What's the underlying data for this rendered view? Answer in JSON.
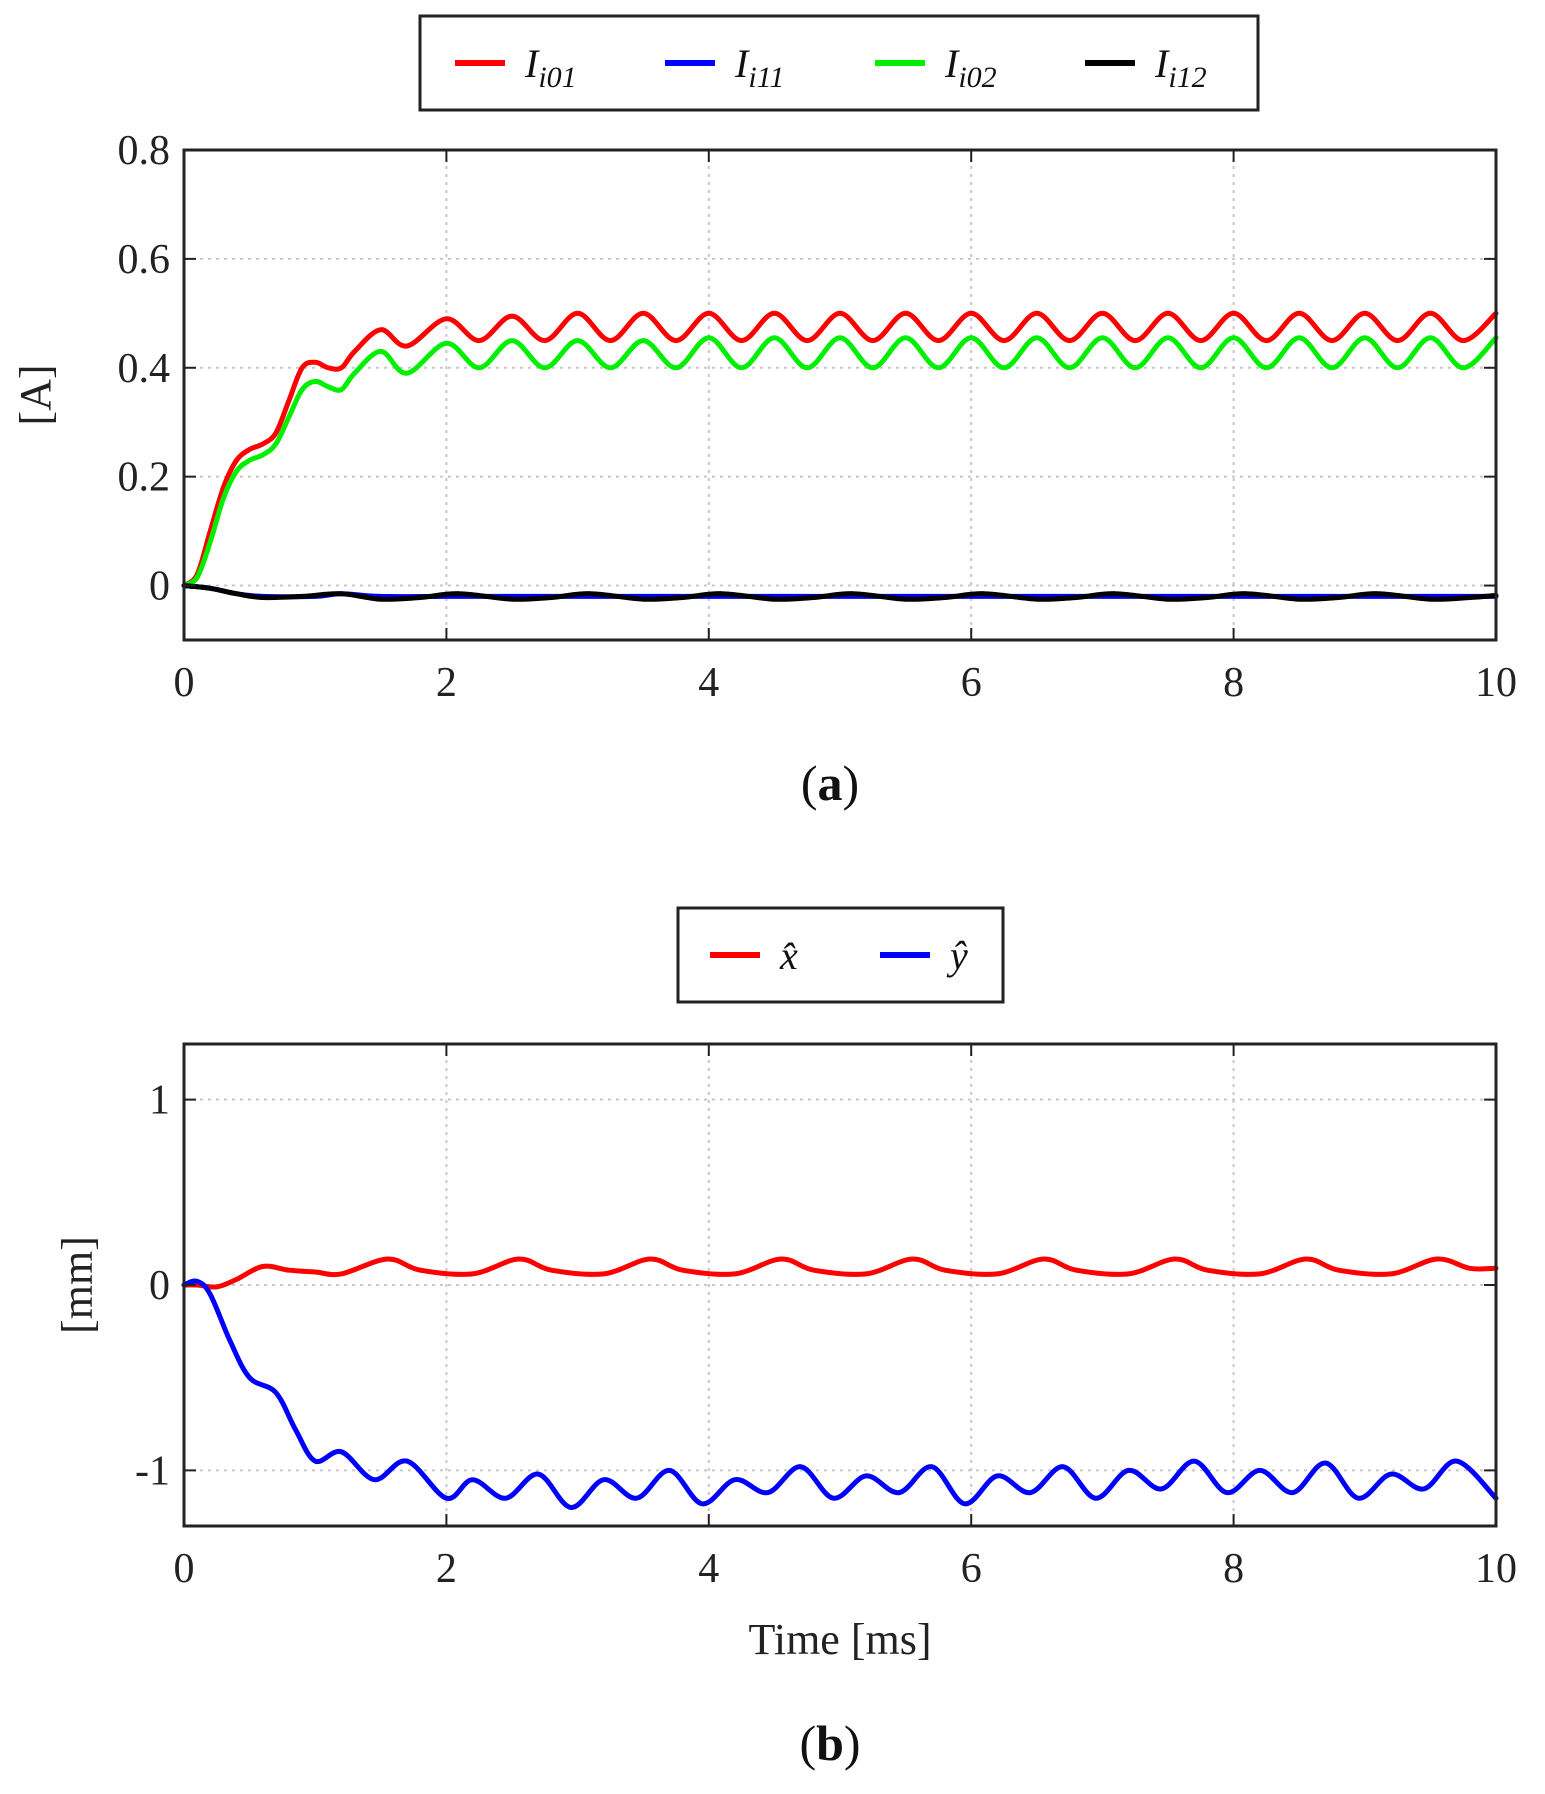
{
  "chart_data": [
    {
      "type": "line",
      "panel": "a",
      "caption_letter": "a",
      "xlabel": "",
      "ylabel": "[A]",
      "xlim": [
        0,
        10
      ],
      "ylim": [
        -0.1,
        0.8
      ],
      "xticks": [
        "0",
        "2",
        "4",
        "6",
        "8",
        "10"
      ],
      "yticks": [
        "0",
        "0.2",
        "0.4",
        "0.6",
        "0.8"
      ],
      "grid": true,
      "legend_position": "top, outside, horizontal",
      "series": [
        {
          "name": "I",
          "subscript": "i01",
          "color": "#ff0000",
          "x": [
            0,
            0.1,
            0.2,
            0.3,
            0.4,
            0.5,
            0.6,
            0.7,
            0.8,
            0.9,
            1.0,
            1.1,
            1.2,
            1.3,
            1.5,
            1.7,
            2.0,
            2.25,
            2.5,
            2.75,
            3.0,
            3.25,
            3.5,
            3.75,
            4.0,
            4.25,
            4.5,
            4.75,
            5.0,
            5.25,
            5.5,
            5.75,
            6.0,
            6.25,
            6.5,
            6.75,
            7.0,
            7.25,
            7.5,
            7.75,
            8.0,
            8.25,
            8.5,
            8.75,
            9.0,
            9.25,
            9.5,
            9.75,
            10.0
          ],
          "y": [
            0,
            0.02,
            0.1,
            0.18,
            0.23,
            0.25,
            0.26,
            0.28,
            0.34,
            0.4,
            0.41,
            0.4,
            0.4,
            0.43,
            0.47,
            0.44,
            0.49,
            0.45,
            0.495,
            0.45,
            0.5,
            0.45,
            0.5,
            0.45,
            0.5,
            0.45,
            0.5,
            0.45,
            0.5,
            0.45,
            0.5,
            0.45,
            0.5,
            0.45,
            0.5,
            0.45,
            0.5,
            0.45,
            0.5,
            0.45,
            0.5,
            0.45,
            0.5,
            0.45,
            0.5,
            0.45,
            0.5,
            0.45,
            0.5
          ]
        },
        {
          "name": "I",
          "subscript": "i11",
          "color": "#0000ff",
          "x": [
            0,
            0.2,
            0.4,
            0.6,
            1.0,
            1.2,
            1.5,
            2.0,
            2.5,
            3.0,
            3.5,
            4.0,
            4.5,
            5.0,
            5.5,
            6.0,
            6.5,
            7.0,
            7.5,
            8.0,
            8.5,
            9.0,
            9.5,
            10.0
          ],
          "y": [
            0,
            -0.005,
            -0.015,
            -0.02,
            -0.02,
            -0.015,
            -0.02,
            -0.02,
            -0.02,
            -0.02,
            -0.02,
            -0.02,
            -0.02,
            -0.02,
            -0.02,
            -0.02,
            -0.02,
            -0.02,
            -0.02,
            -0.02,
            -0.02,
            -0.02,
            -0.02,
            -0.02
          ]
        },
        {
          "name": "I",
          "subscript": "i02",
          "color": "#00ee00",
          "x": [
            0,
            0.1,
            0.2,
            0.3,
            0.4,
            0.5,
            0.6,
            0.7,
            0.8,
            0.9,
            1.0,
            1.1,
            1.2,
            1.3,
            1.5,
            1.7,
            2.0,
            2.25,
            2.5,
            2.75,
            3.0,
            3.25,
            3.5,
            3.75,
            4.0,
            4.25,
            4.5,
            4.75,
            5.0,
            5.25,
            5.5,
            5.75,
            6.0,
            6.25,
            6.5,
            6.75,
            7.0,
            7.25,
            7.5,
            7.75,
            8.0,
            8.25,
            8.5,
            8.75,
            9.0,
            9.25,
            9.5,
            9.75,
            10.0
          ],
          "y": [
            0,
            0.015,
            0.08,
            0.16,
            0.21,
            0.23,
            0.24,
            0.26,
            0.31,
            0.36,
            0.375,
            0.365,
            0.36,
            0.39,
            0.43,
            0.39,
            0.445,
            0.4,
            0.45,
            0.4,
            0.45,
            0.4,
            0.45,
            0.4,
            0.455,
            0.4,
            0.455,
            0.4,
            0.455,
            0.4,
            0.455,
            0.4,
            0.455,
            0.4,
            0.455,
            0.4,
            0.455,
            0.4,
            0.455,
            0.4,
            0.455,
            0.4,
            0.455,
            0.4,
            0.455,
            0.4,
            0.455,
            0.4,
            0.455
          ]
        },
        {
          "name": "I",
          "subscript": "i12",
          "color": "#000000",
          "x": [
            0,
            0.2,
            0.4,
            0.6,
            0.9,
            1.2,
            1.5,
            1.8,
            2.1,
            2.5,
            2.8,
            3.1,
            3.5,
            3.8,
            4.1,
            4.5,
            4.8,
            5.1,
            5.5,
            5.8,
            6.1,
            6.5,
            6.8,
            7.1,
            7.5,
            7.8,
            8.1,
            8.5,
            8.8,
            9.1,
            9.5,
            9.8,
            10.0
          ],
          "y": [
            0,
            -0.005,
            -0.015,
            -0.022,
            -0.02,
            -0.015,
            -0.025,
            -0.022,
            -0.015,
            -0.025,
            -0.022,
            -0.015,
            -0.025,
            -0.022,
            -0.015,
            -0.025,
            -0.022,
            -0.015,
            -0.025,
            -0.022,
            -0.015,
            -0.025,
            -0.022,
            -0.015,
            -0.025,
            -0.022,
            -0.015,
            -0.025,
            -0.022,
            -0.015,
            -0.025,
            -0.022,
            -0.018
          ]
        }
      ]
    },
    {
      "type": "line",
      "panel": "b",
      "caption_letter": "b",
      "xlabel": "Time [ms]",
      "ylabel": "[mm]",
      "xlim": [
        0,
        10
      ],
      "ylim": [
        -1.3,
        1.3
      ],
      "xticks": [
        "0",
        "2",
        "4",
        "6",
        "8",
        "10"
      ],
      "yticks": [
        "-1",
        "0",
        "1"
      ],
      "grid": true,
      "legend_position": "top, outside, horizontal",
      "series": [
        {
          "name": "x̂",
          "color": "#ff0000",
          "x": [
            0,
            0.1,
            0.25,
            0.4,
            0.6,
            0.8,
            1.0,
            1.2,
            1.55,
            1.8,
            2.2,
            2.55,
            2.8,
            3.2,
            3.55,
            3.8,
            4.2,
            4.55,
            4.8,
            5.2,
            5.55,
            5.8,
            6.2,
            6.55,
            6.8,
            7.2,
            7.55,
            7.8,
            8.2,
            8.55,
            8.8,
            9.2,
            9.55,
            9.8,
            10.0
          ],
          "y": [
            0,
            0,
            -0.01,
            0.03,
            0.1,
            0.08,
            0.07,
            0.06,
            0.14,
            0.08,
            0.06,
            0.14,
            0.08,
            0.06,
            0.14,
            0.08,
            0.06,
            0.14,
            0.08,
            0.06,
            0.14,
            0.08,
            0.06,
            0.14,
            0.08,
            0.06,
            0.14,
            0.08,
            0.06,
            0.14,
            0.08,
            0.06,
            0.14,
            0.09,
            0.09
          ]
        },
        {
          "name": "ŷ",
          "color": "#0000ff",
          "x": [
            0,
            0.1,
            0.2,
            0.35,
            0.5,
            0.7,
            0.85,
            1.0,
            1.2,
            1.45,
            1.7,
            2.0,
            2.2,
            2.45,
            2.7,
            2.95,
            3.2,
            3.45,
            3.7,
            3.95,
            4.2,
            4.45,
            4.7,
            4.95,
            5.2,
            5.45,
            5.7,
            5.95,
            6.2,
            6.45,
            6.7,
            6.95,
            7.2,
            7.45,
            7.7,
            7.95,
            8.2,
            8.45,
            8.7,
            8.95,
            9.2,
            9.45,
            9.7,
            10.0
          ],
          "y": [
            0,
            0.02,
            -0.05,
            -0.3,
            -0.5,
            -0.58,
            -0.78,
            -0.95,
            -0.9,
            -1.05,
            -0.95,
            -1.15,
            -1.05,
            -1.15,
            -1.02,
            -1.2,
            -1.05,
            -1.15,
            -1.0,
            -1.18,
            -1.05,
            -1.12,
            -0.98,
            -1.15,
            -1.03,
            -1.12,
            -0.98,
            -1.18,
            -1.03,
            -1.12,
            -0.98,
            -1.15,
            -1.0,
            -1.1,
            -0.95,
            -1.12,
            -1.0,
            -1.12,
            -0.96,
            -1.15,
            -1.02,
            -1.1,
            -0.95,
            -1.15
          ]
        }
      ]
    }
  ]
}
